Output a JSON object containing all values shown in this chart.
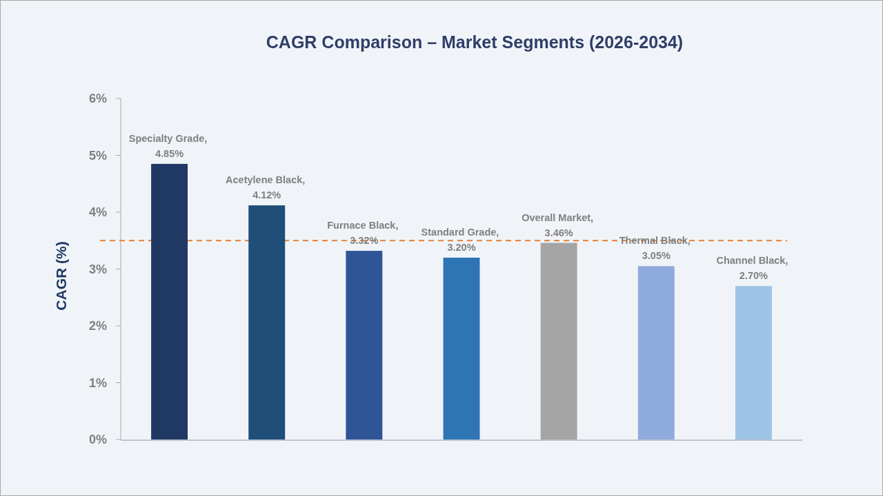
{
  "chart_data": {
    "type": "bar",
    "title": "CAGR Comparison – Market Segments (2026-2034)",
    "ylabel": "CAGR (%)",
    "categories": [
      null,
      null,
      null,
      null,
      null,
      null,
      null
    ],
    "values": [
      4.85,
      4.12,
      3.32,
      3.2,
      3.46,
      3.05,
      2.7
    ],
    "colors": [
      "#203864",
      "#1f4e79",
      "#2f5597",
      "#2e75b6",
      "#a5a5a5",
      "#8faadc",
      "#9dc3e6"
    ],
    "value_labels": [
      "Specialty Grade, 4.85%",
      "Acetylene Black, 4.12%",
      "Furnace Black, 3.32%",
      "Standard Grade, 3.20%",
      "Overall Market, 3.46%",
      "Thermal Black, 3.05%",
      "Channel Black, 2.70%"
    ],
    "ylim": [
      0,
      6
    ],
    "yticks": [
      {
        "value": 0,
        "label": "0%"
      },
      {
        "value": 1,
        "label": "1%"
      },
      {
        "value": 2,
        "label": "2%"
      },
      {
        "value": 3,
        "label": "3%"
      },
      {
        "value": 4,
        "label": "4%"
      },
      {
        "value": 5,
        "label": "5%"
      },
      {
        "value": 6,
        "label": "6%"
      }
    ],
    "tick_labels": "y",
    "ref_lines": [
      {
        "axis": "y",
        "value": 3.5,
        "color": "#e97c30",
        "line_style": "dashed"
      }
    ]
  }
}
